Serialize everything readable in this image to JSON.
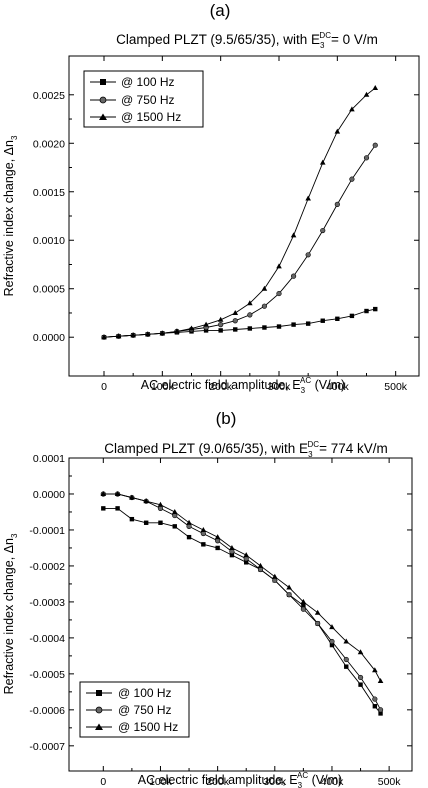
{
  "chart_data": [
    {
      "panel": "(a)",
      "type": "line",
      "title": "Clamped PLZT (9.5/65/35), with E",
      "title_sub": "3",
      "title_sup": "DC",
      "title_tail": "= 0 V/m",
      "xlabel": "AC electric field amplitude, E",
      "xlabel_sub": "3",
      "xlabel_sup": "AC",
      "xlabel_tail": " (V/m)",
      "ylabel": "Refractive index change, Δn",
      "ylabel_sub": "3",
      "xlim": [
        -60000,
        540000
      ],
      "ylim": [
        -0.0004,
        0.0029
      ],
      "xticks": [
        0,
        100000,
        200000,
        300000,
        400000,
        500000
      ],
      "xtick_labels": [
        "0",
        "100k",
        "200k",
        "300k",
        "400k",
        "500k"
      ],
      "yticks": [
        0.0,
        0.0005,
        0.001,
        0.0015,
        0.002,
        0.0025
      ],
      "ytick_labels": [
        "0.0000",
        "0.0005",
        "0.0010",
        "0.0015",
        "0.0020",
        "0.0025"
      ],
      "legend_position": "top-left",
      "series": [
        {
          "name": "@ 100 Hz",
          "marker": "square",
          "x": [
            0,
            25000,
            50000,
            75000,
            100000,
            125000,
            150000,
            175000,
            200000,
            225000,
            250000,
            275000,
            300000,
            325000,
            350000,
            375000,
            400000,
            425000,
            450000,
            465000
          ],
          "y": [
            0.0,
            1e-05,
            2e-05,
            3e-05,
            4e-05,
            5e-05,
            6e-05,
            7e-05,
            7e-05,
            8e-05,
            9e-05,
            0.0001,
            0.00011,
            0.00013,
            0.00014,
            0.00017,
            0.00019,
            0.00022,
            0.00027,
            0.00029
          ]
        },
        {
          "name": "@ 750 Hz",
          "marker": "circle",
          "x": [
            0,
            25000,
            50000,
            75000,
            100000,
            125000,
            150000,
            175000,
            200000,
            225000,
            250000,
            275000,
            300000,
            325000,
            350000,
            375000,
            400000,
            425000,
            450000,
            465000
          ],
          "y": [
            0.0,
            1e-05,
            2e-05,
            3e-05,
            4e-05,
            6e-05,
            8e-05,
            0.0001,
            0.00013,
            0.00017,
            0.00023,
            0.00032,
            0.00045,
            0.00063,
            0.00085,
            0.0011,
            0.00137,
            0.00163,
            0.00185,
            0.00198
          ]
        },
        {
          "name": "@ 1500 Hz",
          "marker": "triangle",
          "x": [
            0,
            25000,
            50000,
            75000,
            100000,
            125000,
            150000,
            175000,
            200000,
            225000,
            250000,
            275000,
            300000,
            325000,
            350000,
            375000,
            400000,
            425000,
            450000,
            465000
          ],
          "y": [
            0.0,
            1e-05,
            2e-05,
            3e-05,
            4e-05,
            6e-05,
            9e-05,
            0.00013,
            0.00018,
            0.00025,
            0.00035,
            0.0005,
            0.00073,
            0.00105,
            0.00143,
            0.0018,
            0.00212,
            0.00235,
            0.0025,
            0.00257
          ]
        }
      ]
    },
    {
      "panel": "(b)",
      "type": "line",
      "title": "Clamped PLZT (9.0/65/35), with E",
      "title_sub": "3",
      "title_sup": "DC",
      "title_tail": "= 774 kV/m",
      "xlabel": "AC electric field amplitude, E",
      "xlabel_sub": "3",
      "xlabel_sup": "AC",
      "xlabel_tail": " (V/m)",
      "ylabel": "Refractive index change, Δn",
      "ylabel_sub": "3",
      "xlim": [
        -60000,
        540000
      ],
      "ylim": [
        -0.00077,
        0.0001
      ],
      "xticks": [
        0,
        100000,
        200000,
        300000,
        400000,
        500000
      ],
      "xtick_labels": [
        "0",
        "100k",
        "200k",
        "300k",
        "400k",
        "500k"
      ],
      "yticks": [
        0.0001,
        0.0,
        -0.0001,
        -0.0002,
        -0.0003,
        -0.0004,
        -0.0005,
        -0.0006,
        -0.0007
      ],
      "ytick_labels": [
        "0.0001",
        "0.0000",
        "-0.0001",
        "-0.0002",
        "-0.0003",
        "-0.0004",
        "-0.0005",
        "-0.0006",
        "-0.0007"
      ],
      "legend_position": "bottom-left",
      "series": [
        {
          "name": "@ 100 Hz",
          "marker": "square",
          "x": [
            0,
            25000,
            50000,
            75000,
            100000,
            125000,
            150000,
            175000,
            200000,
            225000,
            250000,
            275000,
            300000,
            325000,
            350000,
            375000,
            400000,
            425000,
            450000,
            475000,
            485000
          ],
          "y": [
            -4e-05,
            -4e-05,
            -7e-05,
            -8e-05,
            -8e-05,
            -9e-05,
            -0.00012,
            -0.00014,
            -0.00015,
            -0.00017,
            -0.00019,
            -0.00021,
            -0.00024,
            -0.00028,
            -0.00031,
            -0.00036,
            -0.00042,
            -0.00048,
            -0.00053,
            -0.00059,
            -0.00061
          ]
        },
        {
          "name": "@ 750 Hz",
          "marker": "circle",
          "x": [
            0,
            25000,
            50000,
            75000,
            100000,
            125000,
            150000,
            175000,
            200000,
            225000,
            250000,
            275000,
            300000,
            325000,
            350000,
            375000,
            400000,
            425000,
            450000,
            475000,
            485000
          ],
          "y": [
            0.0,
            0.0,
            -1e-05,
            -2e-05,
            -4e-05,
            -6e-05,
            -9e-05,
            -0.00011,
            -0.00013,
            -0.00016,
            -0.00018,
            -0.00021,
            -0.00024,
            -0.00028,
            -0.00032,
            -0.00036,
            -0.00041,
            -0.00046,
            -0.00051,
            -0.00057,
            -0.0006
          ]
        },
        {
          "name": "@ 1500 Hz",
          "marker": "triangle",
          "x": [
            0,
            25000,
            50000,
            75000,
            100000,
            125000,
            150000,
            175000,
            200000,
            225000,
            250000,
            275000,
            300000,
            325000,
            350000,
            375000,
            400000,
            425000,
            450000,
            475000,
            485000
          ],
          "y": [
            0.0,
            0.0,
            -1e-05,
            -2e-05,
            -3e-05,
            -5e-05,
            -8e-05,
            -0.0001,
            -0.00012,
            -0.00015,
            -0.00017,
            -0.0002,
            -0.00023,
            -0.00026,
            -0.0003,
            -0.00033,
            -0.00037,
            -0.00041,
            -0.00044,
            -0.00049,
            -0.00052
          ]
        }
      ]
    }
  ]
}
